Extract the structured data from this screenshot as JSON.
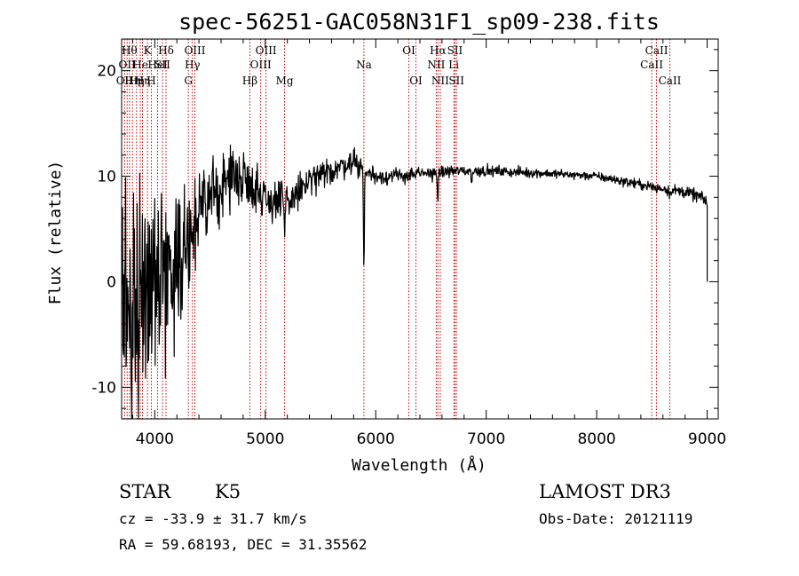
{
  "chart_data": {
    "type": "line",
    "title": "spec-56251-GAC058N31F1_sp09-238.fits",
    "xlabel": "Wavelength (Å)",
    "ylabel": "Flux (relative)",
    "xlim": [
      3700,
      9100
    ],
    "ylim": [
      -13,
      23
    ],
    "x_ticks": [
      4000,
      5000,
      6000,
      7000,
      8000,
      9000
    ],
    "x_tick_labels": [
      "4000",
      "5000",
      "6000",
      "7000",
      "8000",
      "9000"
    ],
    "y_ticks": [
      -10,
      0,
      10,
      20
    ],
    "y_tick_labels": [
      "-10",
      "0",
      "10",
      "20"
    ],
    "spectrum_anchors": {
      "wavelength": [
        3700,
        3750,
        3800,
        3850,
        3900,
        3950,
        4000,
        4100,
        4200,
        4300,
        4350,
        4400,
        4500,
        4600,
        4700,
        4800,
        4900,
        5000,
        5100,
        5200,
        5300,
        5400,
        5500,
        5600,
        5700,
        5800,
        5900,
        6000,
        6200,
        6500,
        6700,
        7000,
        7500,
        8000,
        8500,
        8800,
        8950,
        9000
      ],
      "flux": [
        -4,
        -3,
        -2,
        -1,
        0,
        0.5,
        0.5,
        1,
        2,
        4,
        5,
        6,
        8,
        9,
        10,
        10,
        9,
        8,
        7.5,
        7.5,
        8.5,
        9.5,
        10,
        10.5,
        11,
        11.5,
        10.5,
        10,
        10,
        10.3,
        10.5,
        10.5,
        10.3,
        10,
        9,
        8.5,
        8,
        7.5
      ]
    },
    "spectrum_noise": {
      "wavelength": [
        3700,
        3900,
        4000,
        4200,
        4400,
        4600,
        4800,
        5000,
        5200,
        5600,
        5800,
        6000,
        6500,
        7000,
        8000,
        9000
      ],
      "sigma": [
        6,
        5,
        4.5,
        3,
        2,
        1.5,
        1.2,
        1.2,
        1,
        0.6,
        0.6,
        0.4,
        0.3,
        0.25,
        0.2,
        0.3
      ]
    },
    "absorption_features": [
      {
        "wavelength": 5893,
        "flux": 1.5
      },
      {
        "wavelength": 6563,
        "flux": 7.3
      },
      {
        "wavelength": 6870,
        "flux": 9.3
      },
      {
        "wavelength": 5175,
        "flux": 4
      },
      {
        "wavelength": 8542,
        "flux": 8.5
      },
      {
        "wavelength": 8662,
        "flux": 8.2
      }
    ],
    "emission_lines": [
      {
        "wavelength": 3727,
        "label": "OII",
        "row": 2
      },
      {
        "wavelength": 3750,
        "label": "OII",
        "row": 1
      },
      {
        "wavelength": 3771,
        "label": "Hθ",
        "row": 0
      },
      {
        "wavelength": 3798,
        "label": "Hη",
        "row": 2
      },
      {
        "wavelength": 3835,
        "label": "Hη",
        "row": 2
      },
      {
        "wavelength": 3869,
        "label": "He",
        "row": 1
      },
      {
        "wavelength": 3889,
        "label": "Hη",
        "row": 2
      },
      {
        "wavelength": 3934,
        "label": "K",
        "row": 0
      },
      {
        "wavelength": 3969,
        "label": "H",
        "row": 2
      },
      {
        "wavelength": 4026,
        "label": "HeI",
        "row": 1
      },
      {
        "wavelength": 4070,
        "label": "SII",
        "row": 1
      },
      {
        "wavelength": 4102,
        "label": "Hδ",
        "row": 0
      },
      {
        "wavelength": 4304,
        "label": "G",
        "row": 2
      },
      {
        "wavelength": 4341,
        "label": "Hγ",
        "row": 1
      },
      {
        "wavelength": 4363,
        "label": "OIII",
        "row": 0
      },
      {
        "wavelength": 4861,
        "label": "Hβ",
        "row": 2
      },
      {
        "wavelength": 4959,
        "label": "OIII",
        "row": 1
      },
      {
        "wavelength": 5007,
        "label": "OIII",
        "row": 0
      },
      {
        "wavelength": 5175,
        "label": "Mg",
        "row": 2
      },
      {
        "wavelength": 5893,
        "label": "Na",
        "row": 1
      },
      {
        "wavelength": 6300,
        "label": "OI",
        "row": 0
      },
      {
        "wavelength": 6364,
        "label": "OI",
        "row": 2
      },
      {
        "wavelength": 6548,
        "label": "NII",
        "row": 1
      },
      {
        "wavelength": 6563,
        "label": "Hα",
        "row": 0
      },
      {
        "wavelength": 6584,
        "label": "NII",
        "row": 2
      },
      {
        "wavelength": 6707,
        "label": "Li",
        "row": 1
      },
      {
        "wavelength": 6717,
        "label": "SII",
        "row": 0
      },
      {
        "wavelength": 6731,
        "label": "SII",
        "row": 2
      },
      {
        "wavelength": 8498,
        "label": "CaII",
        "row": 1
      },
      {
        "wavelength": 8542,
        "label": "CaII",
        "row": 0
      },
      {
        "wavelength": 8662,
        "label": "CaII",
        "row": 2
      }
    ],
    "colors": {
      "spectrum": "#000000",
      "line_markers": "#cc0000",
      "axes": "#000000",
      "background": "#ffffff"
    }
  },
  "info": {
    "object_class": "STAR",
    "subclass": "K5",
    "survey": "LAMOST DR3",
    "redshift_text": "cz = -33.9 ± 31.7 km/s",
    "obs_date": "Obs-Date: 20121119",
    "coords": "RA =  59.68193, DEC =  31.35562"
  }
}
